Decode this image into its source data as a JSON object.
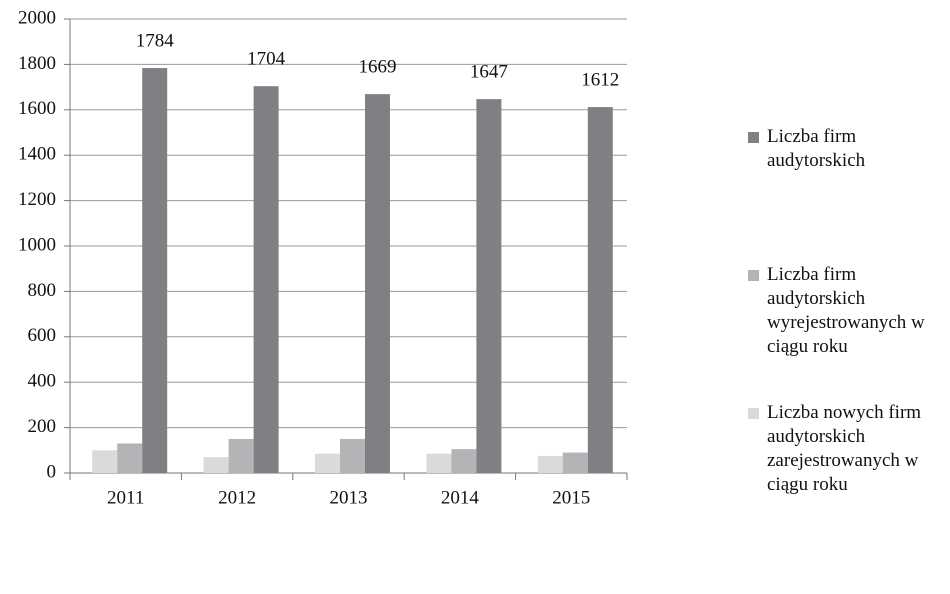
{
  "chart_data": {
    "type": "bar",
    "categories": [
      "2011",
      "2012",
      "2013",
      "2014",
      "2015"
    ],
    "series": [
      {
        "name": "Liczba nowych firm audytorskich zarejestrowanych w ciągu roku",
        "color": "#dadadb",
        "values": [
          100,
          70,
          85,
          85,
          75
        ]
      },
      {
        "name": "Liczba firm audytorskich wyrejestrowanych w ciągu roku",
        "color": "#b4b4b6",
        "values": [
          130,
          150,
          150,
          105,
          90
        ]
      },
      {
        "name": "Liczba firm audytorskich",
        "color": "#808084",
        "values": [
          1784,
          1704,
          1669,
          1647,
          1612
        ],
        "data_labels": true
      }
    ],
    "ylim": [
      0,
      2000
    ],
    "yticks": [
      0,
      200,
      400,
      600,
      800,
      1000,
      1200,
      1400,
      1600,
      1800,
      2000
    ],
    "grid": true,
    "legend": "right"
  }
}
